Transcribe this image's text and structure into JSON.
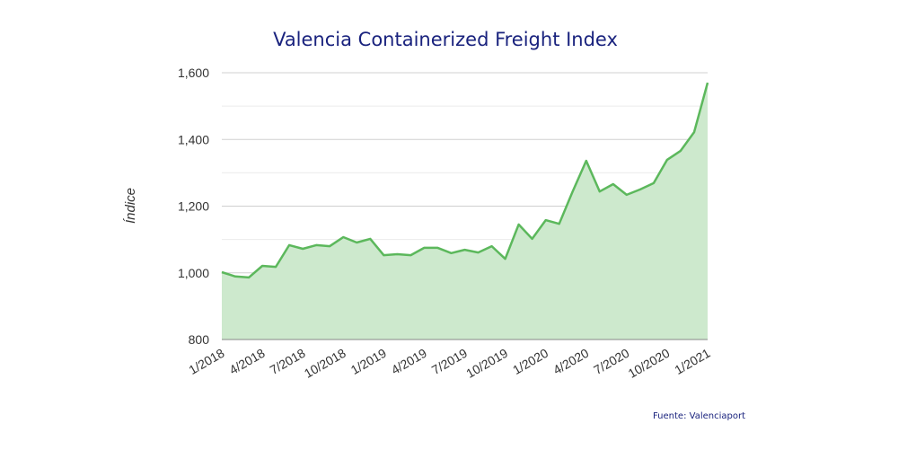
{
  "chart_data": {
    "type": "area",
    "title": "Valencia Containerized Freight Index",
    "ylabel": "Índice",
    "xlabel": "",
    "source": "Fuente: Valenciaport",
    "ylim": [
      800,
      1600
    ],
    "yticks": [
      "800",
      "1,000",
      "1,200",
      "1,400",
      "1,600"
    ],
    "ytick_values": [
      800,
      1000,
      1200,
      1400,
      1600
    ],
    "xtick_labels": [
      "1/2018",
      "4/2018",
      "7/2018",
      "10/2018",
      "1/2019",
      "4/2019",
      "7/2019",
      "10/2019",
      "1/2020",
      "4/2020",
      "7/2020",
      "10/2020",
      "1/2021"
    ],
    "x_start": "1/2018",
    "x_end": "1/2021",
    "grid": true,
    "color": "#5cb85c",
    "fill_color": "#cde9cd",
    "values": [
      1002,
      989,
      986,
      1021,
      1018,
      1083,
      1072,
      1083,
      1080,
      1107,
      1091,
      1102,
      1053,
      1056,
      1053,
      1075,
      1075,
      1059,
      1069,
      1061,
      1080,
      1042,
      1145,
      1102,
      1158,
      1147,
      1244,
      1336,
      1244,
      1266,
      1234,
      1250,
      1269,
      1339,
      1366,
      1422,
      1570
    ]
  }
}
